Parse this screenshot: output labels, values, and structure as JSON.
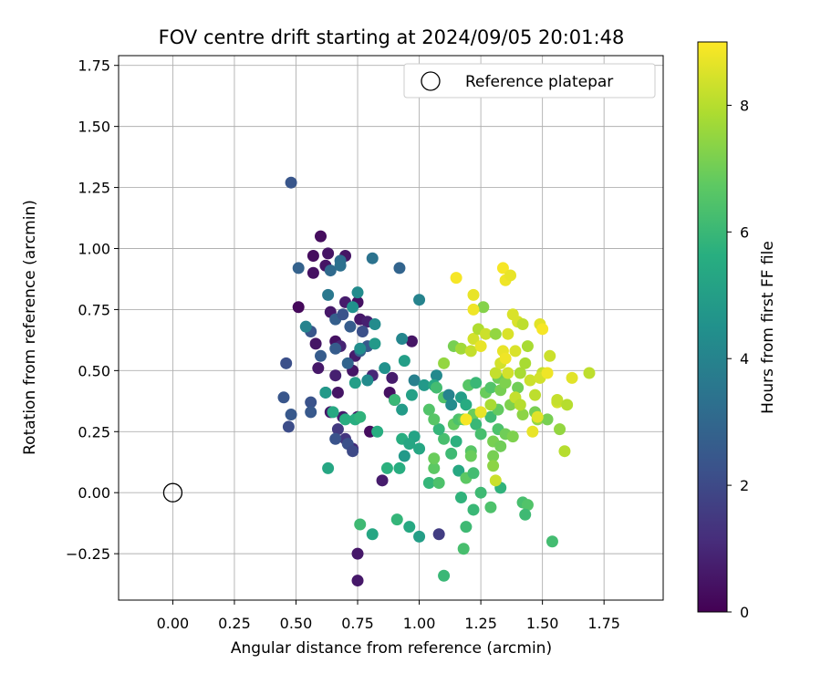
{
  "chart_data": {
    "type": "scatter",
    "title": "FOV centre drift starting at 2024/09/05 20:01:48",
    "xlabel": "Angular distance from reference (arcmin)",
    "ylabel": "Rotation from reference (arcmin)",
    "xlim": [
      -0.22,
      1.99
    ],
    "ylim": [
      -0.44,
      1.79
    ],
    "xticks": [
      "0.00",
      "0.25",
      "0.50",
      "0.75",
      "1.00",
      "1.25",
      "1.50",
      "1.75"
    ],
    "xtick_values": [
      0,
      0.25,
      0.5,
      0.75,
      1.0,
      1.25,
      1.5,
      1.75
    ],
    "yticks": [
      "−0.25",
      "0.00",
      "0.25",
      "0.50",
      "0.75",
      "1.00",
      "1.25",
      "1.50",
      "1.75"
    ],
    "ytick_values": [
      -0.25,
      0,
      0.25,
      0.5,
      0.75,
      1.0,
      1.25,
      1.5,
      1.75
    ],
    "grid": true,
    "legend": {
      "position": "top-right",
      "entries": [
        {
          "label": "Reference platepar",
          "marker": "open-circle",
          "color": "#000000"
        }
      ]
    },
    "reference_point": {
      "x": 0.0,
      "y": 0.0
    },
    "colorbar": {
      "label": "Hours from first FF file",
      "min": 0,
      "max": 9,
      "ticks": [
        "0",
        "2",
        "4",
        "6",
        "8"
      ],
      "tick_values": [
        0,
        2,
        4,
        6,
        8
      ],
      "colormap": "viridis"
    },
    "points": [
      {
        "x": 0.6,
        "y": 1.05,
        "h": 0.3
      },
      {
        "x": 0.57,
        "y": 0.97,
        "h": 0.3
      },
      {
        "x": 0.63,
        "y": 0.98,
        "h": 0.5
      },
      {
        "x": 0.7,
        "y": 0.97,
        "h": 0.5
      },
      {
        "x": 0.57,
        "y": 0.9,
        "h": 0.4
      },
      {
        "x": 0.62,
        "y": 0.93,
        "h": 0.5
      },
      {
        "x": 0.51,
        "y": 0.76,
        "h": 0.2
      },
      {
        "x": 0.64,
        "y": 0.74,
        "h": 0.6
      },
      {
        "x": 0.7,
        "y": 0.78,
        "h": 0.7
      },
      {
        "x": 0.75,
        "y": 0.78,
        "h": 0.4
      },
      {
        "x": 0.76,
        "y": 0.71,
        "h": 0.6
      },
      {
        "x": 0.79,
        "y": 0.7,
        "h": 0.8
      },
      {
        "x": 0.58,
        "y": 0.61,
        "h": 0.5
      },
      {
        "x": 0.59,
        "y": 0.51,
        "h": 0.6
      },
      {
        "x": 0.66,
        "y": 0.62,
        "h": 0.4
      },
      {
        "x": 0.68,
        "y": 0.6,
        "h": 0.9
      },
      {
        "x": 0.74,
        "y": 0.56,
        "h": 0.7
      },
      {
        "x": 0.73,
        "y": 0.5,
        "h": 0.5
      },
      {
        "x": 0.66,
        "y": 0.48,
        "h": 0.8
      },
      {
        "x": 0.81,
        "y": 0.48,
        "h": 1.0
      },
      {
        "x": 0.89,
        "y": 0.47,
        "h": 0.7
      },
      {
        "x": 0.97,
        "y": 0.62,
        "h": 0.5
      },
      {
        "x": 0.88,
        "y": 0.41,
        "h": 0.4
      },
      {
        "x": 0.9,
        "y": 0.38,
        "h": 0.3
      },
      {
        "x": 0.67,
        "y": 0.41,
        "h": 0.5
      },
      {
        "x": 0.64,
        "y": 0.33,
        "h": 0.6
      },
      {
        "x": 0.69,
        "y": 0.31,
        "h": 0.7
      },
      {
        "x": 0.75,
        "y": 0.31,
        "h": 0.4
      },
      {
        "x": 0.8,
        "y": 0.25,
        "h": 0.3
      },
      {
        "x": 0.75,
        "y": -0.25,
        "h": 0.6
      },
      {
        "x": 0.75,
        "y": -0.36,
        "h": 0.6
      },
      {
        "x": 0.85,
        "y": 0.05,
        "h": 0.7
      },
      {
        "x": 0.73,
        "y": 0.18,
        "h": 1.1
      },
      {
        "x": 0.7,
        "y": 0.22,
        "h": 1.4
      },
      {
        "x": 0.67,
        "y": 0.26,
        "h": 1.5
      },
      {
        "x": 1.08,
        "y": -0.17,
        "h": 1.6
      },
      {
        "x": 0.48,
        "y": 1.27,
        "h": 2.4
      },
      {
        "x": 0.51,
        "y": 0.92,
        "h": 2.8
      },
      {
        "x": 0.46,
        "y": 0.53,
        "h": 2.2
      },
      {
        "x": 0.45,
        "y": 0.39,
        "h": 2.4
      },
      {
        "x": 0.48,
        "y": 0.32,
        "h": 2.5
      },
      {
        "x": 0.47,
        "y": 0.27,
        "h": 2.1
      },
      {
        "x": 0.56,
        "y": 0.37,
        "h": 2.3
      },
      {
        "x": 0.56,
        "y": 0.33,
        "h": 2.5
      },
      {
        "x": 0.6,
        "y": 0.56,
        "h": 2.6
      },
      {
        "x": 0.62,
        "y": 0.41,
        "h": 2.3
      },
      {
        "x": 0.56,
        "y": 0.66,
        "h": 2.4
      },
      {
        "x": 0.66,
        "y": 0.71,
        "h": 2.7
      },
      {
        "x": 0.69,
        "y": 0.73,
        "h": 2.3
      },
      {
        "x": 0.72,
        "y": 0.68,
        "h": 2.6
      },
      {
        "x": 0.77,
        "y": 0.66,
        "h": 2.2
      },
      {
        "x": 0.79,
        "y": 0.6,
        "h": 2.5
      },
      {
        "x": 0.71,
        "y": 0.53,
        "h": 2.9
      },
      {
        "x": 0.76,
        "y": 0.58,
        "h": 2.8
      },
      {
        "x": 0.66,
        "y": 0.59,
        "h": 2.6
      },
      {
        "x": 0.66,
        "y": 0.22,
        "h": 2.3
      },
      {
        "x": 0.71,
        "y": 0.2,
        "h": 2.2
      },
      {
        "x": 0.73,
        "y": 0.17,
        "h": 2.0
      },
      {
        "x": 0.68,
        "y": 0.95,
        "h": 3.2
      },
      {
        "x": 0.64,
        "y": 0.91,
        "h": 3.1
      },
      {
        "x": 0.68,
        "y": 0.93,
        "h": 3.3
      },
      {
        "x": 0.81,
        "y": 0.96,
        "h": 3.4
      },
      {
        "x": 0.92,
        "y": 0.92,
        "h": 2.9
      },
      {
        "x": 0.63,
        "y": 0.81,
        "h": 3.6
      },
      {
        "x": 0.75,
        "y": 0.82,
        "h": 4.3
      },
      {
        "x": 0.73,
        "y": 0.76,
        "h": 4.5
      },
      {
        "x": 0.54,
        "y": 0.68,
        "h": 4.0
      },
      {
        "x": 0.82,
        "y": 0.69,
        "h": 4.3
      },
      {
        "x": 0.93,
        "y": 0.63,
        "h": 4.1
      },
      {
        "x": 1.0,
        "y": 0.79,
        "h": 4.0
      },
      {
        "x": 0.86,
        "y": 0.51,
        "h": 4.5
      },
      {
        "x": 0.98,
        "y": 0.46,
        "h": 3.9
      },
      {
        "x": 0.79,
        "y": 0.46,
        "h": 4.3
      },
      {
        "x": 0.82,
        "y": 0.61,
        "h": 4.8
      },
      {
        "x": 0.74,
        "y": 0.45,
        "h": 5.0
      },
      {
        "x": 0.76,
        "y": 0.59,
        "h": 4.4
      },
      {
        "x": 0.94,
        "y": 0.54,
        "h": 5.0
      },
      {
        "x": 0.97,
        "y": 0.4,
        "h": 5.1
      },
      {
        "x": 0.93,
        "y": 0.34,
        "h": 4.9
      },
      {
        "x": 0.98,
        "y": 0.23,
        "h": 5.2
      },
      {
        "x": 0.62,
        "y": 0.41,
        "h": 4.8
      },
      {
        "x": 0.65,
        "y": 0.33,
        "h": 5.4
      },
      {
        "x": 0.7,
        "y": 0.3,
        "h": 5.6
      },
      {
        "x": 0.74,
        "y": 0.3,
        "h": 5.6
      },
      {
        "x": 0.76,
        "y": 0.31,
        "h": 5.8
      },
      {
        "x": 0.83,
        "y": 0.25,
        "h": 5.6
      },
      {
        "x": 0.9,
        "y": 0.38,
        "h": 6.0
      },
      {
        "x": 0.93,
        "y": 0.22,
        "h": 5.6
      },
      {
        "x": 0.63,
        "y": 0.1,
        "h": 5.3
      },
      {
        "x": 0.87,
        "y": 0.1,
        "h": 5.7
      },
      {
        "x": 0.92,
        "y": 0.1,
        "h": 5.6
      },
      {
        "x": 0.96,
        "y": 0.2,
        "h": 5.3
      },
      {
        "x": 1.0,
        "y": 0.18,
        "h": 5.3
      },
      {
        "x": 0.94,
        "y": 0.15,
        "h": 4.8
      },
      {
        "x": 0.76,
        "y": -0.13,
        "h": 6.1
      },
      {
        "x": 0.81,
        "y": -0.17,
        "h": 5.3
      },
      {
        "x": 0.91,
        "y": -0.11,
        "h": 5.9
      },
      {
        "x": 0.96,
        "y": -0.14,
        "h": 5.4
      },
      {
        "x": 1.0,
        "y": -0.18,
        "h": 5.0
      },
      {
        "x": 1.1,
        "y": -0.34,
        "h": 6.0
      },
      {
        "x": 1.18,
        "y": -0.23,
        "h": 6.3
      },
      {
        "x": 1.19,
        "y": -0.14,
        "h": 6.1
      },
      {
        "x": 1.17,
        "y": -0.02,
        "h": 5.8
      },
      {
        "x": 1.22,
        "y": -0.07,
        "h": 6.0
      },
      {
        "x": 1.25,
        "y": 0.0,
        "h": 6.1
      },
      {
        "x": 1.29,
        "y": -0.06,
        "h": 6.4
      },
      {
        "x": 1.33,
        "y": 0.02,
        "h": 5.8
      },
      {
        "x": 1.42,
        "y": -0.04,
        "h": 6.3
      },
      {
        "x": 1.44,
        "y": -0.05,
        "h": 6.5
      },
      {
        "x": 1.43,
        "y": -0.09,
        "h": 6.1
      },
      {
        "x": 1.54,
        "y": -0.2,
        "h": 6.2
      },
      {
        "x": 1.04,
        "y": 0.04,
        "h": 5.9
      },
      {
        "x": 1.08,
        "y": 0.04,
        "h": 6.4
      },
      {
        "x": 1.06,
        "y": 0.1,
        "h": 6.7
      },
      {
        "x": 1.16,
        "y": 0.09,
        "h": 5.4
      },
      {
        "x": 1.19,
        "y": 0.06,
        "h": 6.7
      },
      {
        "x": 1.22,
        "y": 0.08,
        "h": 6.2
      },
      {
        "x": 1.13,
        "y": 0.16,
        "h": 6.1
      },
      {
        "x": 1.15,
        "y": 0.21,
        "h": 5.7
      },
      {
        "x": 1.06,
        "y": 0.14,
        "h": 6.9
      },
      {
        "x": 1.21,
        "y": 0.17,
        "h": 6.6
      },
      {
        "x": 1.21,
        "y": 0.15,
        "h": 6.9
      },
      {
        "x": 1.1,
        "y": 0.22,
        "h": 6.3
      },
      {
        "x": 1.14,
        "y": 0.28,
        "h": 6.8
      },
      {
        "x": 1.08,
        "y": 0.26,
        "h": 5.9
      },
      {
        "x": 1.04,
        "y": 0.34,
        "h": 6.5
      },
      {
        "x": 1.06,
        "y": 0.3,
        "h": 6.6
      },
      {
        "x": 1.16,
        "y": 0.3,
        "h": 6.4
      },
      {
        "x": 1.18,
        "y": 0.3,
        "h": 6.7
      },
      {
        "x": 1.22,
        "y": 0.32,
        "h": 6.9
      },
      {
        "x": 1.23,
        "y": 0.28,
        "h": 6.0
      },
      {
        "x": 1.25,
        "y": 0.24,
        "h": 6.3
      },
      {
        "x": 1.29,
        "y": 0.31,
        "h": 6.1
      },
      {
        "x": 1.32,
        "y": 0.26,
        "h": 6.4
      },
      {
        "x": 1.32,
        "y": 0.34,
        "h": 6.8
      },
      {
        "x": 1.3,
        "y": 0.21,
        "h": 7.1
      },
      {
        "x": 1.3,
        "y": 0.15,
        "h": 7.1
      },
      {
        "x": 1.3,
        "y": 0.11,
        "h": 7.4
      },
      {
        "x": 1.33,
        "y": 0.19,
        "h": 7.0
      },
      {
        "x": 1.35,
        "y": 0.24,
        "h": 7.0
      },
      {
        "x": 1.38,
        "y": 0.23,
        "h": 7.2
      },
      {
        "x": 1.37,
        "y": 0.36,
        "h": 7.2
      },
      {
        "x": 1.42,
        "y": 0.32,
        "h": 7.4
      },
      {
        "x": 1.47,
        "y": 0.33,
        "h": 7.1
      },
      {
        "x": 1.48,
        "y": 0.3,
        "h": 7.5
      },
      {
        "x": 1.52,
        "y": 0.3,
        "h": 7.1
      },
      {
        "x": 1.57,
        "y": 0.26,
        "h": 7.5
      },
      {
        "x": 1.07,
        "y": 0.48,
        "h": 4.2
      },
      {
        "x": 1.02,
        "y": 0.44,
        "h": 4.8
      },
      {
        "x": 1.06,
        "y": 0.44,
        "h": 5.4
      },
      {
        "x": 1.07,
        "y": 0.43,
        "h": 6.2
      },
      {
        "x": 1.1,
        "y": 0.39,
        "h": 6.5
      },
      {
        "x": 1.12,
        "y": 0.4,
        "h": 4.0
      },
      {
        "x": 1.13,
        "y": 0.36,
        "h": 4.3
      },
      {
        "x": 1.17,
        "y": 0.39,
        "h": 5.0
      },
      {
        "x": 1.19,
        "y": 0.36,
        "h": 5.5
      },
      {
        "x": 1.2,
        "y": 0.44,
        "h": 6.6
      },
      {
        "x": 1.23,
        "y": 0.45,
        "h": 6.0
      },
      {
        "x": 1.27,
        "y": 0.41,
        "h": 6.9
      },
      {
        "x": 1.29,
        "y": 0.43,
        "h": 6.5
      },
      {
        "x": 1.32,
        "y": 0.47,
        "h": 7.0
      },
      {
        "x": 1.33,
        "y": 0.42,
        "h": 7.1
      },
      {
        "x": 1.35,
        "y": 0.45,
        "h": 7.2
      },
      {
        "x": 1.4,
        "y": 0.43,
        "h": 7.0
      },
      {
        "x": 1.29,
        "y": 0.36,
        "h": 7.8
      },
      {
        "x": 1.31,
        "y": 0.49,
        "h": 8.2
      },
      {
        "x": 1.33,
        "y": 0.53,
        "h": 8.4
      },
      {
        "x": 1.36,
        "y": 0.49,
        "h": 8.4
      },
      {
        "x": 1.39,
        "y": 0.39,
        "h": 8.2
      },
      {
        "x": 1.41,
        "y": 0.36,
        "h": 8.0
      },
      {
        "x": 1.41,
        "y": 0.49,
        "h": 7.8
      },
      {
        "x": 1.45,
        "y": 0.46,
        "h": 8.3
      },
      {
        "x": 1.47,
        "y": 0.4,
        "h": 8.1
      },
      {
        "x": 1.48,
        "y": 0.31,
        "h": 8.6
      },
      {
        "x": 1.46,
        "y": 0.25,
        "h": 8.7
      },
      {
        "x": 1.5,
        "y": 0.49,
        "h": 8.2
      },
      {
        "x": 1.49,
        "y": 0.47,
        "h": 8.4
      },
      {
        "x": 1.52,
        "y": 0.49,
        "h": 8.8
      },
      {
        "x": 1.53,
        "y": 0.56,
        "h": 8.3
      },
      {
        "x": 1.56,
        "y": 0.37,
        "h": 8.4
      },
      {
        "x": 1.56,
        "y": 0.38,
        "h": 8.2
      },
      {
        "x": 1.6,
        "y": 0.36,
        "h": 8.0
      },
      {
        "x": 1.59,
        "y": 0.17,
        "h": 8.0
      },
      {
        "x": 1.62,
        "y": 0.47,
        "h": 8.6
      },
      {
        "x": 1.69,
        "y": 0.49,
        "h": 8.1
      },
      {
        "x": 1.14,
        "y": 0.6,
        "h": 7.1
      },
      {
        "x": 1.1,
        "y": 0.53,
        "h": 7.5
      },
      {
        "x": 1.17,
        "y": 0.59,
        "h": 7.7
      },
      {
        "x": 1.21,
        "y": 0.58,
        "h": 8.2
      },
      {
        "x": 1.22,
        "y": 0.63,
        "h": 8.4
      },
      {
        "x": 1.24,
        "y": 0.67,
        "h": 7.9
      },
      {
        "x": 1.25,
        "y": 0.6,
        "h": 8.7
      },
      {
        "x": 1.27,
        "y": 0.65,
        "h": 8.3
      },
      {
        "x": 1.31,
        "y": 0.65,
        "h": 7.5
      },
      {
        "x": 1.34,
        "y": 0.58,
        "h": 8.7
      },
      {
        "x": 1.35,
        "y": 0.55,
        "h": 8.8
      },
      {
        "x": 1.36,
        "y": 0.65,
        "h": 8.5
      },
      {
        "x": 1.38,
        "y": 0.73,
        "h": 8.5
      },
      {
        "x": 1.4,
        "y": 0.7,
        "h": 8.5
      },
      {
        "x": 1.42,
        "y": 0.69,
        "h": 8.1
      },
      {
        "x": 1.44,
        "y": 0.6,
        "h": 7.8
      },
      {
        "x": 1.43,
        "y": 0.53,
        "h": 7.8
      },
      {
        "x": 1.49,
        "y": 0.69,
        "h": 8.6
      },
      {
        "x": 1.5,
        "y": 0.67,
        "h": 8.9
      },
      {
        "x": 1.39,
        "y": 0.58,
        "h": 8.5
      },
      {
        "x": 1.26,
        "y": 0.76,
        "h": 7.3
      },
      {
        "x": 1.22,
        "y": 0.75,
        "h": 8.8
      },
      {
        "x": 1.22,
        "y": 0.81,
        "h": 8.7
      },
      {
        "x": 1.15,
        "y": 0.88,
        "h": 8.9
      },
      {
        "x": 1.34,
        "y": 0.92,
        "h": 8.9
      },
      {
        "x": 1.35,
        "y": 0.87,
        "h": 8.8
      },
      {
        "x": 1.37,
        "y": 0.89,
        "h": 8.7
      },
      {
        "x": 1.19,
        "y": 0.3,
        "h": 8.9
      },
      {
        "x": 1.25,
        "y": 0.33,
        "h": 8.7
      },
      {
        "x": 1.31,
        "y": 0.05,
        "h": 8.3
      }
    ]
  }
}
